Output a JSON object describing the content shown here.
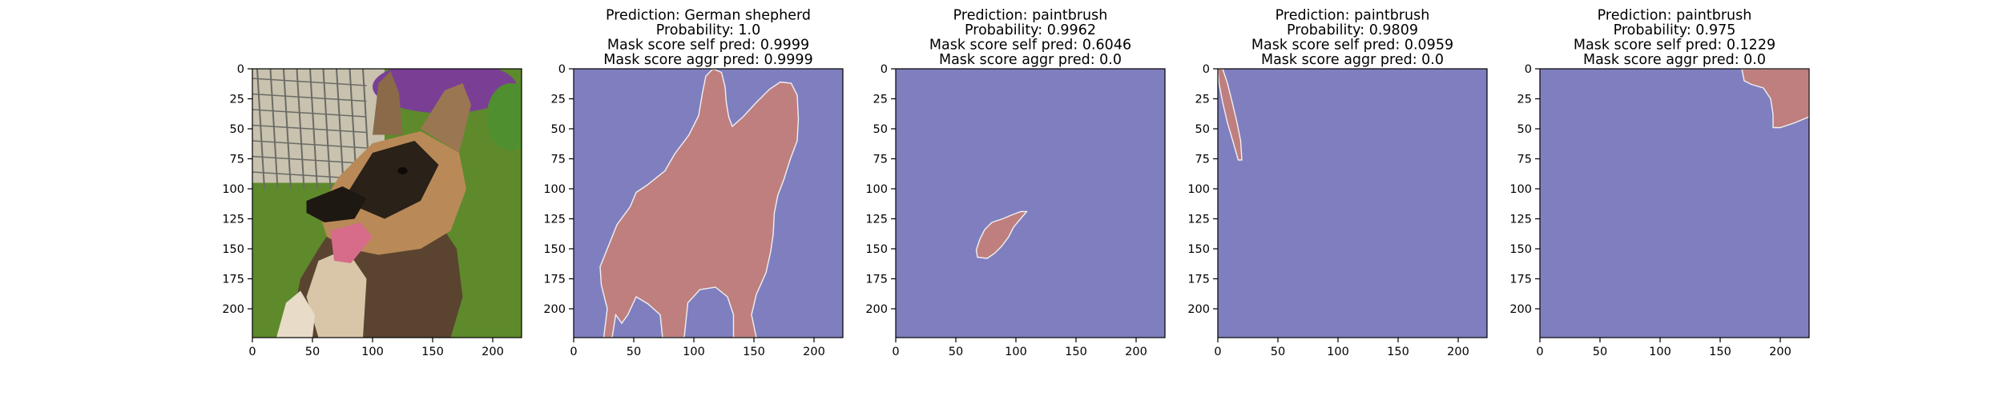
{
  "chart_data": [
    {
      "type": "image",
      "title_lines": [],
      "image_content": "German shepherd photo",
      "xticks": [
        0,
        50,
        100,
        150,
        200
      ],
      "yticks": [
        0,
        25,
        50,
        75,
        100,
        125,
        150,
        175,
        200
      ],
      "xlim": [
        0,
        224
      ],
      "ylim": [
        224,
        0
      ]
    },
    {
      "type": "heatmap",
      "title_lines": [
        "Prediction: German shepherd",
        "Probability: 1.0",
        "Mask score self pred: 0.9999",
        "Mask score aggr pred: 0.9999"
      ],
      "mask_region": [
        [
          25,
          224
        ],
        [
          28,
          200
        ],
        [
          23,
          180
        ],
        [
          22,
          165
        ],
        [
          30,
          145
        ],
        [
          36,
          130
        ],
        [
          47,
          115
        ],
        [
          52,
          103
        ],
        [
          61,
          97
        ],
        [
          76,
          85
        ],
        [
          84,
          71
        ],
        [
          96,
          55
        ],
        [
          104,
          39
        ],
        [
          107,
          21
        ],
        [
          110,
          6
        ],
        [
          116,
          0
        ],
        [
          123,
          3
        ],
        [
          126,
          15
        ],
        [
          127,
          28
        ],
        [
          129,
          40
        ],
        [
          132,
          48
        ],
        [
          141,
          40
        ],
        [
          152,
          28
        ],
        [
          163,
          17
        ],
        [
          172,
          11
        ],
        [
          181,
          12
        ],
        [
          186,
          22
        ],
        [
          187,
          42
        ],
        [
          186,
          60
        ],
        [
          180,
          76
        ],
        [
          175,
          92
        ],
        [
          170,
          105
        ],
        [
          167,
          120
        ],
        [
          166,
          138
        ],
        [
          164,
          152
        ],
        [
          160,
          170
        ],
        [
          152,
          188
        ],
        [
          148,
          205
        ],
        [
          152,
          224
        ],
        [
          133,
          224
        ],
        [
          133,
          205
        ],
        [
          128,
          190
        ],
        [
          118,
          182
        ],
        [
          105,
          184
        ],
        [
          95,
          195
        ],
        [
          92,
          224
        ],
        [
          74,
          224
        ],
        [
          72,
          205
        ],
        [
          62,
          196
        ],
        [
          52,
          190
        ],
        [
          45,
          205
        ],
        [
          40,
          212
        ],
        [
          35,
          205
        ],
        [
          32,
          224
        ]
      ],
      "xticks": [
        0,
        50,
        100,
        150,
        200
      ],
      "yticks": [
        0,
        25,
        50,
        75,
        100,
        125,
        150,
        175,
        200
      ],
      "xlim": [
        0,
        224
      ],
      "ylim": [
        224,
        0
      ]
    },
    {
      "type": "heatmap",
      "title_lines": [
        "Prediction: paintbrush",
        "Probability: 0.9962",
        "Mask score self pred: 0.6046",
        "Mask score aggr pred: 0.0"
      ],
      "mask_region": [
        [
          68,
          157
        ],
        [
          67,
          151
        ],
        [
          70,
          142
        ],
        [
          74,
          134
        ],
        [
          80,
          128
        ],
        [
          89,
          125
        ],
        [
          96,
          122
        ],
        [
          104,
          119
        ],
        [
          109,
          119
        ],
        [
          103,
          126
        ],
        [
          98,
          132
        ],
        [
          94,
          140
        ],
        [
          88,
          148
        ],
        [
          82,
          154
        ],
        [
          76,
          158
        ]
      ],
      "xticks": [
        0,
        50,
        100,
        150,
        200
      ],
      "yticks": [
        0,
        25,
        50,
        75,
        100,
        125,
        150,
        175,
        200
      ],
      "xlim": [
        0,
        224
      ],
      "ylim": [
        224,
        0
      ]
    },
    {
      "type": "heatmap",
      "title_lines": [
        "Prediction: paintbrush",
        "Probability: 0.9809",
        "Mask score self pred: 0.0959",
        "Mask score aggr pred: 0.0"
      ],
      "mask_region": [
        [
          0,
          0
        ],
        [
          4,
          0
        ],
        [
          8,
          12
        ],
        [
          12,
          28
        ],
        [
          16,
          45
        ],
        [
          19,
          60
        ],
        [
          20,
          76
        ],
        [
          17,
          76
        ],
        [
          13,
          62
        ],
        [
          8,
          45
        ],
        [
          4,
          28
        ],
        [
          1,
          12
        ]
      ],
      "xticks": [
        0,
        50,
        100,
        150,
        200
      ],
      "yticks": [
        0,
        25,
        50,
        75,
        100,
        125,
        150,
        175,
        200
      ],
      "xlim": [
        0,
        224
      ],
      "ylim": [
        224,
        0
      ]
    },
    {
      "type": "heatmap",
      "title_lines": [
        "Prediction: paintbrush",
        "Probability: 0.975",
        "Mask score self pred: 0.1229",
        "Mask score aggr pred: 0.0"
      ],
      "mask_region": [
        [
          168,
          0
        ],
        [
          224,
          0
        ],
        [
          224,
          40
        ],
        [
          212,
          45
        ],
        [
          200,
          49
        ],
        [
          194,
          49
        ],
        [
          194,
          38
        ],
        [
          192,
          25
        ],
        [
          186,
          16
        ],
        [
          176,
          13
        ],
        [
          170,
          10
        ]
      ],
      "xticks": [
        0,
        50,
        100,
        150,
        200
      ],
      "yticks": [
        0,
        25,
        50,
        75,
        100,
        125,
        150,
        175,
        200
      ],
      "xlim": [
        0,
        224
      ],
      "ylim": [
        224,
        0
      ]
    }
  ],
  "colors": {
    "background_class": "#7f7fbf",
    "mask_class": "#bf7f7f",
    "mask_edge": "#f0f0f0",
    "axis": "#000000",
    "grass": "#5e8a2c",
    "fur_dark": "#2a2118",
    "fur_tan": "#b98a57"
  }
}
